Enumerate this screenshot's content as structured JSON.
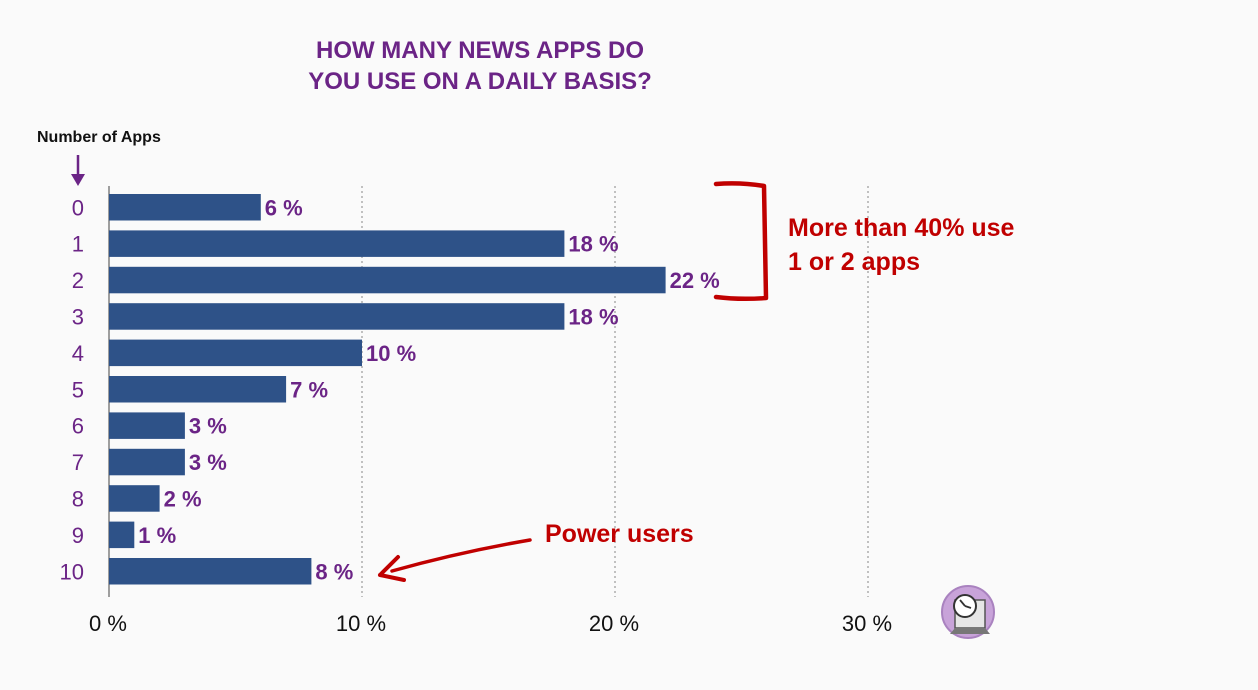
{
  "chart_data": {
    "type": "bar",
    "orientation": "horizontal",
    "title_lines": [
      "HOW MANY NEWS APPS DO",
      "YOU USE ON A DAILY BASIS?"
    ],
    "ylabel": "Number of Apps",
    "xlabel": "",
    "categories": [
      "0",
      "1",
      "2",
      "3",
      "4",
      "5",
      "6",
      "7",
      "8",
      "9",
      "10"
    ],
    "values": [
      6,
      18,
      22,
      18,
      10,
      7,
      3,
      3,
      2,
      1,
      8
    ],
    "value_labels": [
      "6 %",
      "18 %",
      "22 %",
      "18 %",
      "10 %",
      "7 %",
      "3 %",
      "3 %",
      "2 %",
      "1 %",
      "8 %"
    ],
    "xlim": [
      0,
      30
    ],
    "x_ticks": [
      0,
      10,
      20,
      30
    ],
    "x_tick_labels": [
      "0 %",
      "10 %",
      "20 %",
      "30 %"
    ],
    "grid": "vertical-dotted",
    "annotations": {
      "bracket": {
        "lines": [
          "More than 40% use",
          "1 or 2 apps"
        ],
        "spans_categories": [
          "0",
          "2"
        ]
      },
      "arrow": {
        "text": "Power users",
        "points_to_category": "10"
      }
    },
    "colors": {
      "bar": "#2e5288",
      "title": "#6b2486",
      "labels": "#6b2486",
      "annotation": "#c00000",
      "grid": "#999999",
      "axis_line": "#7f7f7f"
    }
  },
  "logo": {
    "icon": "clock-on-monitor-icon"
  }
}
